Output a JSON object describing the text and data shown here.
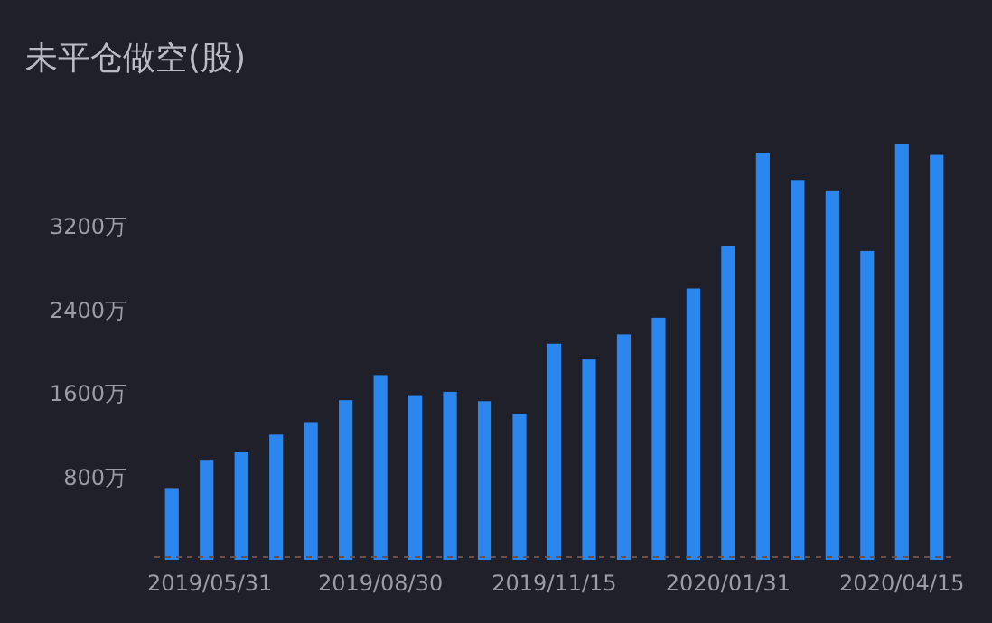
{
  "chart_data": {
    "type": "bar",
    "title": "未平仓做空(股)",
    "categories": [
      null,
      "2019/05/31",
      null,
      null,
      null,
      null,
      "2019/08/30",
      null,
      null,
      null,
      null,
      "2019/11/15",
      null,
      null,
      null,
      null,
      "2020/01/31",
      null,
      null,
      null,
      null,
      "2020/04/15",
      null
    ],
    "values": [
      680,
      950,
      1030,
      1200,
      1320,
      1530,
      1770,
      1570,
      1610,
      1520,
      1400,
      2070,
      1920,
      2160,
      2320,
      2600,
      3010,
      3900,
      3640,
      3540,
      2960,
      3980,
      3880
    ],
    "color": "#2b86ee",
    "ylim": [
      0,
      3980
    ],
    "yticks": [
      {
        "value": 800,
        "label": "800万"
      },
      {
        "value": 1600,
        "label": "1600万"
      },
      {
        "value": 2400,
        "label": "2400万"
      },
      {
        "value": 3200,
        "label": "3200万"
      }
    ],
    "grid": false
  }
}
